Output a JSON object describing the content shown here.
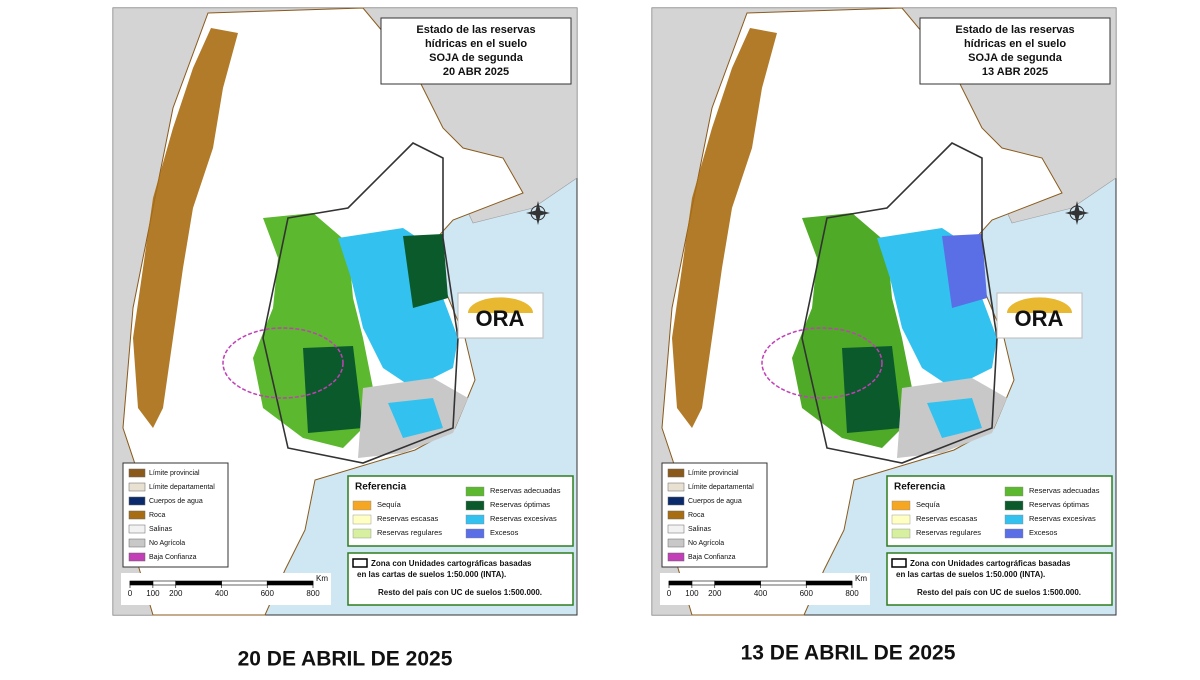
{
  "maps": [
    {
      "title_lines": [
        "Estado de las reservas",
        "hídricas en el suelo",
        "SOJA de segunda",
        "20 ABR 2025"
      ],
      "caption": "20 DE ABRIL DE 2025"
    },
    {
      "title_lines": [
        "Estado de las reservas",
        "hídricas en el suelo",
        "SOJA de segunda",
        "13 ABR 2025"
      ],
      "caption": "13 DE ABRIL DE 2025"
    }
  ],
  "logo": "ORA",
  "layers_legend": [
    {
      "label": "Límite provincial",
      "color": "#8b5a1b"
    },
    {
      "label": "Límite departamental",
      "color": "#e8e0d0"
    },
    {
      "label": "Cuerpos de agua",
      "color": "#0b2a6b"
    },
    {
      "label": "Roca",
      "color": "#a86d12"
    },
    {
      "label": "Salinas",
      "color": "#f2f2f2"
    },
    {
      "label": "No Agrícola",
      "color": "#c8c8c8"
    },
    {
      "label": "Baja Confianza",
      "color": "#c23fb8"
    }
  ],
  "reference": {
    "title": "Referencia",
    "items": [
      {
        "label": "Sequía",
        "color": "#f5a623"
      },
      {
        "label": "Reservas escasas",
        "color": "#ffffc4"
      },
      {
        "label": "Reservas regulares",
        "color": "#d6f0a0"
      },
      {
        "label": "Reservas adecuadas",
        "color": "#5cb82e"
      },
      {
        "label": "Reservas óptimas",
        "color": "#0b5a2c"
      },
      {
        "label": "Reservas excesivas",
        "color": "#33c2ef"
      },
      {
        "label": "Excesos",
        "color": "#5a6ee6"
      }
    ]
  },
  "zone_note": {
    "lines": [
      "Zona con Unidades cartográficas basadas",
      "en las cartas de suelos 1:50.000 (INTA)."
    ],
    "rest": "Resto del país con UC de suelos 1:500.000."
  },
  "scale": {
    "unit": "Km",
    "ticks": [
      0,
      100,
      200,
      400,
      600,
      800
    ]
  }
}
